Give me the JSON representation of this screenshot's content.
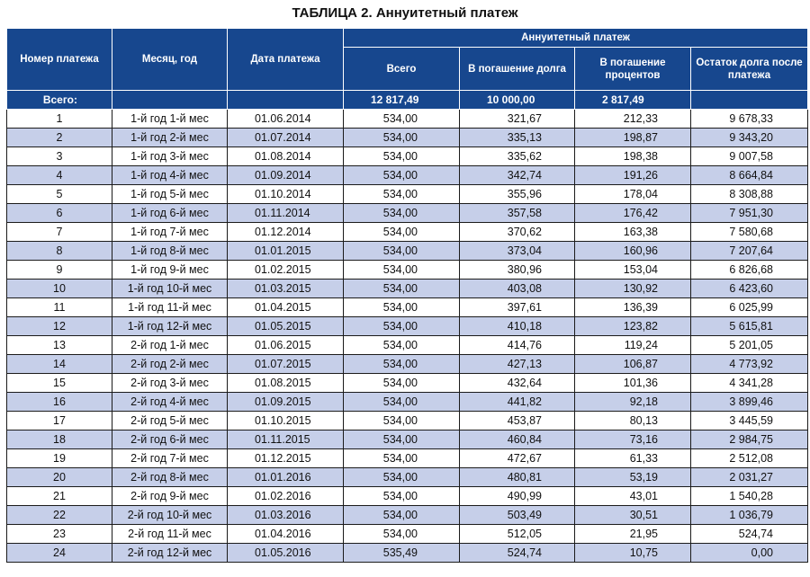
{
  "title": "ТАБЛИЦА 2. Аннуитетный платеж",
  "headers": {
    "payment_number": "Номер платежа",
    "month_year": "Месяц, год",
    "payment_date": "Дата платежа",
    "annuity_group": "Аннуитетный платеж",
    "total": "Всего",
    "principal": "В погашение долга",
    "interest": "В погашение процентов",
    "balance": "Остаток долга после платежа"
  },
  "totals": {
    "label": "Всего:",
    "total": "12 817,49",
    "principal": "10 000,00",
    "interest": "2 817,49"
  },
  "rows": [
    {
      "n": "1",
      "month": "1-й год 1-й мес",
      "date": "01.06.2014",
      "total": "534,00",
      "principal": "321,67",
      "interest": "212,33",
      "balance": "9 678,33"
    },
    {
      "n": "2",
      "month": "1-й год 2-й мес",
      "date": "01.07.2014",
      "total": "534,00",
      "principal": "335,13",
      "interest": "198,87",
      "balance": "9 343,20"
    },
    {
      "n": "3",
      "month": "1-й год 3-й мес",
      "date": "01.08.2014",
      "total": "534,00",
      "principal": "335,62",
      "interest": "198,38",
      "balance": "9 007,58"
    },
    {
      "n": "4",
      "month": "1-й год 4-й мес",
      "date": "01.09.2014",
      "total": "534,00",
      "principal": "342,74",
      "interest": "191,26",
      "balance": "8 664,84"
    },
    {
      "n": "5",
      "month": "1-й год 5-й мес",
      "date": "01.10.2014",
      "total": "534,00",
      "principal": "355,96",
      "interest": "178,04",
      "balance": "8 308,88"
    },
    {
      "n": "6",
      "month": "1-й год 6-й мес",
      "date": "01.11.2014",
      "total": "534,00",
      "principal": "357,58",
      "interest": "176,42",
      "balance": "7 951,30"
    },
    {
      "n": "7",
      "month": "1-й год 7-й мес",
      "date": "01.12.2014",
      "total": "534,00",
      "principal": "370,62",
      "interest": "163,38",
      "balance": "7 580,68"
    },
    {
      "n": "8",
      "month": "1-й год 8-й мес",
      "date": "01.01.2015",
      "total": "534,00",
      "principal": "373,04",
      "interest": "160,96",
      "balance": "7 207,64"
    },
    {
      "n": "9",
      "month": "1-й год 9-й мес",
      "date": "01.02.2015",
      "total": "534,00",
      "principal": "380,96",
      "interest": "153,04",
      "balance": "6 826,68"
    },
    {
      "n": "10",
      "month": "1-й год 10-й мес",
      "date": "01.03.2015",
      "total": "534,00",
      "principal": "403,08",
      "interest": "130,92",
      "balance": "6 423,60"
    },
    {
      "n": "11",
      "month": "1-й год 11-й мес",
      "date": "01.04.2015",
      "total": "534,00",
      "principal": "397,61",
      "interest": "136,39",
      "balance": "6 025,99"
    },
    {
      "n": "12",
      "month": "1-й год 12-й мес",
      "date": "01.05.2015",
      "total": "534,00",
      "principal": "410,18",
      "interest": "123,82",
      "balance": "5 615,81"
    },
    {
      "n": "13",
      "month": "2-й год 1-й мес",
      "date": "01.06.2015",
      "total": "534,00",
      "principal": "414,76",
      "interest": "119,24",
      "balance": "5 201,05"
    },
    {
      "n": "14",
      "month": "2-й год 2-й мес",
      "date": "01.07.2015",
      "total": "534,00",
      "principal": "427,13",
      "interest": "106,87",
      "balance": "4 773,92"
    },
    {
      "n": "15",
      "month": "2-й год 3-й мес",
      "date": "01.08.2015",
      "total": "534,00",
      "principal": "432,64",
      "interest": "101,36",
      "balance": "4 341,28"
    },
    {
      "n": "16",
      "month": "2-й год 4-й мес",
      "date": "01.09.2015",
      "total": "534,00",
      "principal": "441,82",
      "interest": "92,18",
      "balance": "3 899,46"
    },
    {
      "n": "17",
      "month": "2-й год 5-й мес",
      "date": "01.10.2015",
      "total": "534,00",
      "principal": "453,87",
      "interest": "80,13",
      "balance": "3 445,59"
    },
    {
      "n": "18",
      "month": "2-й год 6-й мес",
      "date": "01.11.2015",
      "total": "534,00",
      "principal": "460,84",
      "interest": "73,16",
      "balance": "2 984,75"
    },
    {
      "n": "19",
      "month": "2-й год 7-й мес",
      "date": "01.12.2015",
      "total": "534,00",
      "principal": "472,67",
      "interest": "61,33",
      "balance": "2 512,08"
    },
    {
      "n": "20",
      "month": "2-й год 8-й мес",
      "date": "01.01.2016",
      "total": "534,00",
      "principal": "480,81",
      "interest": "53,19",
      "balance": "2 031,27"
    },
    {
      "n": "21",
      "month": "2-й год 9-й мес",
      "date": "01.02.2016",
      "total": "534,00",
      "principal": "490,99",
      "interest": "43,01",
      "balance": "1 540,28"
    },
    {
      "n": "22",
      "month": "2-й год 10-й мес",
      "date": "01.03.2016",
      "total": "534,00",
      "principal": "503,49",
      "interest": "30,51",
      "balance": "1 036,79"
    },
    {
      "n": "23",
      "month": "2-й год 11-й мес",
      "date": "01.04.2016",
      "total": "534,00",
      "principal": "512,05",
      "interest": "21,95",
      "balance": "524,74"
    },
    {
      "n": "24",
      "month": "2-й год 12-й мес",
      "date": "01.05.2016",
      "total": "535,49",
      "principal": "524,74",
      "interest": "10,75",
      "balance": "0,00"
    }
  ]
}
